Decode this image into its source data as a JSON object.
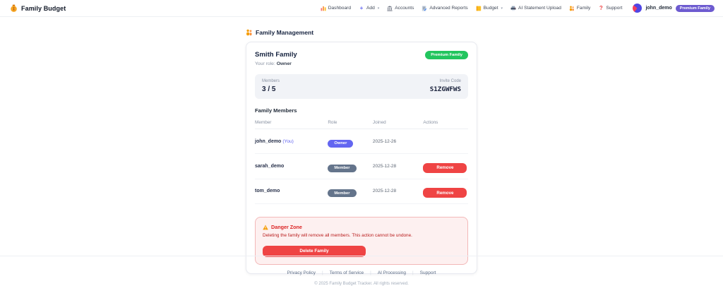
{
  "header": {
    "logo_icon": "money-bag-icon",
    "app_title": "Family Budget",
    "nav_items": [
      {
        "icon": "chart-icon",
        "label": "Dashboard",
        "caret": false
      },
      {
        "icon": "plus-icon",
        "label": "Add",
        "caret": true
      },
      {
        "icon": "bank-icon",
        "label": "Accounts",
        "caret": false
      },
      {
        "icon": "memo-icon",
        "label": "Advanced Reports",
        "caret": false
      },
      {
        "icon": "ledger-icon",
        "label": "Budget",
        "caret": true
      },
      {
        "icon": "printer-icon",
        "label": "AI Statement Upload",
        "caret": false
      },
      {
        "icon": "family-icon",
        "label": "Family",
        "caret": false
      },
      {
        "icon": "question-icon",
        "label": "Support",
        "caret": false
      }
    ],
    "user": {
      "name": "john_demo",
      "badge": "Premium Family"
    }
  },
  "page": {
    "title_icon": "family-icon",
    "title": "Family Management"
  },
  "family_card": {
    "name": "Smith Family",
    "role_label": "Your role:",
    "role_value": "Owner",
    "premium_badge": "Premium Family",
    "stats": {
      "members_label": "Members",
      "members_value": "3 / 5",
      "invite_label": "Invite Code",
      "invite_code": "S1ZGWFWS"
    },
    "members_section_title": "Family Members",
    "table": {
      "columns": [
        "Member",
        "Role",
        "Joined",
        "Actions"
      ],
      "rows": [
        {
          "member": "john_demo",
          "you_suffix": "(You)",
          "role": "Owner",
          "joined": "2025-12-26",
          "action": null
        },
        {
          "member": "sarah_demo",
          "you_suffix": "",
          "role": "Member",
          "joined": "2025-12-28",
          "action": "Remove"
        },
        {
          "member": "tom_demo",
          "you_suffix": "",
          "role": "Member",
          "joined": "2025-12-28",
          "action": "Remove"
        }
      ]
    },
    "danger_zone": {
      "title_icon": "warning-icon",
      "title": "Danger Zone",
      "description": "Deleting the family will remove all members. This action cannot be undone.",
      "delete_button": "Delete Family"
    }
  },
  "footer": {
    "links": [
      "Privacy Policy",
      "Terms of Service",
      "AI Processing",
      "Support"
    ],
    "copyright": "© 2025 Family Budget Tracker. All rights reserved."
  },
  "colors": {
    "accent_indigo": "#6366f1",
    "premium_green": "#22c55e",
    "premium_purple": "#6d5bd0",
    "member_slate": "#64748b",
    "danger_red": "#ef4444",
    "danger_bg": "#fdf0f0",
    "danger_border": "#f3b8b8"
  }
}
